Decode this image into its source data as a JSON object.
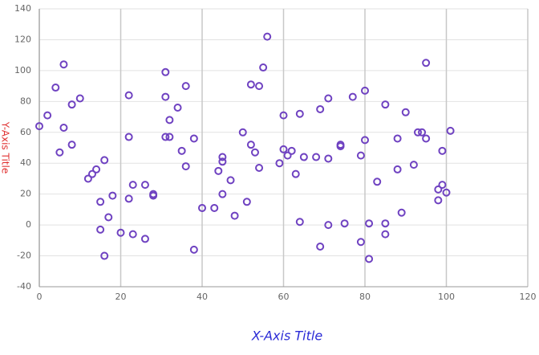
{
  "chart_data": {
    "type": "scatter",
    "x_label": "X-Axis Title",
    "y_label": "Y-Axis Title",
    "color": "#6f42c1",
    "xlim": [
      0,
      120
    ],
    "xticks": [
      0,
      20,
      40,
      60,
      80,
      100,
      120
    ],
    "ylim": [
      -40,
      140
    ],
    "yticks": [
      -40,
      -20,
      0,
      20,
      40,
      60,
      80,
      100,
      120,
      140
    ],
    "grid": true,
    "x": [
      0,
      2,
      4,
      5,
      6,
      6,
      8,
      8,
      10,
      12,
      13,
      14,
      15,
      15,
      16,
      16,
      17,
      18,
      20,
      22,
      22,
      22,
      23,
      23,
      26,
      26,
      28,
      28,
      31,
      31,
      31,
      32,
      32,
      34,
      35,
      36,
      36,
      38,
      38,
      40,
      43,
      44,
      45,
      45,
      45,
      47,
      48,
      50,
      51,
      52,
      52,
      53,
      54,
      54,
      55,
      56,
      59,
      60,
      60,
      61,
      62,
      63,
      64,
      64,
      65,
      68,
      69,
      69,
      71,
      71,
      71,
      74,
      74,
      75,
      77,
      79,
      79,
      80,
      80,
      81,
      81,
      83,
      85,
      85,
      85,
      88,
      88,
      89,
      90,
      92,
      93,
      94,
      95,
      95,
      98,
      98,
      99,
      99,
      100,
      101
    ],
    "y": [
      64,
      71,
      89,
      47,
      104,
      63,
      78,
      52,
      82,
      30,
      33,
      36,
      15,
      -3,
      42,
      -20,
      5,
      19,
      -5,
      84,
      57,
      17,
      26,
      -6,
      26,
      -9,
      20,
      19,
      99,
      83,
      57,
      68,
      57,
      76,
      48,
      90,
      38,
      56,
      -16,
      11,
      11,
      35,
      44,
      41,
      20,
      29,
      6,
      60,
      15,
      91,
      52,
      47,
      90,
      37,
      102,
      122,
      40,
      71,
      49,
      45,
      48,
      33,
      72,
      2,
      44,
      44,
      75,
      -14,
      82,
      43,
      0,
      52,
      51,
      1,
      83,
      45,
      -11,
      87,
      55,
      1,
      -22,
      28,
      78,
      1,
      -6,
      56,
      36,
      8,
      73,
      39,
      60,
      60,
      105,
      56,
      16,
      23,
      26,
      48,
      21,
      61
    ]
  }
}
